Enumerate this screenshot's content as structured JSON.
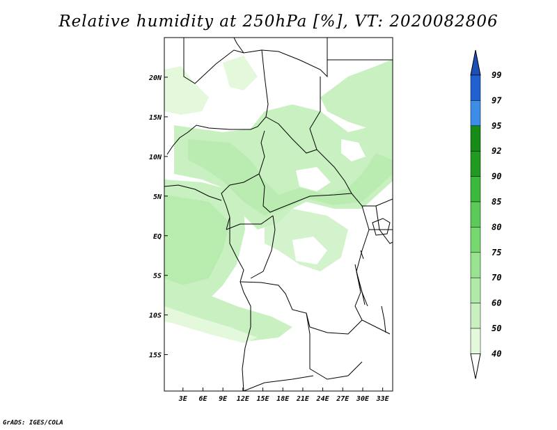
{
  "title": "Relative humidity at 250hPa [%], VT: 2020082806",
  "credit": "GrADS: IGES/COLA",
  "axes": {
    "x_ticks": [
      "3E",
      "6E",
      "9E",
      "12E",
      "15E",
      "18E",
      "21E",
      "24E",
      "27E",
      "30E",
      "33E"
    ],
    "x_values": [
      3,
      6,
      9,
      12,
      15,
      18,
      21,
      24,
      27,
      30,
      33
    ],
    "y_ticks": [
      "20N",
      "15N",
      "10N",
      "5N",
      "EQ",
      "5S",
      "10S",
      "15S"
    ],
    "y_values": [
      20,
      15,
      10,
      5,
      0,
      -5,
      -10,
      -15
    ],
    "lon_range": [
      0.2,
      34.5
    ],
    "lat_range": [
      -19.6,
      25.0
    ]
  },
  "legend": {
    "levels": [
      "40",
      "50",
      "60",
      "70",
      "75",
      "80",
      "85",
      "90",
      "92",
      "95",
      "97",
      "99"
    ],
    "colors": [
      "#f0fcec",
      "#e4f8dc",
      "#c8f0c0",
      "#b0eaa8",
      "#98e290",
      "#78d870",
      "#5cc958",
      "#3cb83c",
      "#209a20",
      "#168c16",
      "#3c8ce8",
      "#2060d0",
      "#1c50b8"
    ]
  },
  "colors": {
    "humid_light": "#e4f8dc",
    "humid_mid": "#c8f0c0",
    "humid_strong": "#b0eaa8"
  }
}
